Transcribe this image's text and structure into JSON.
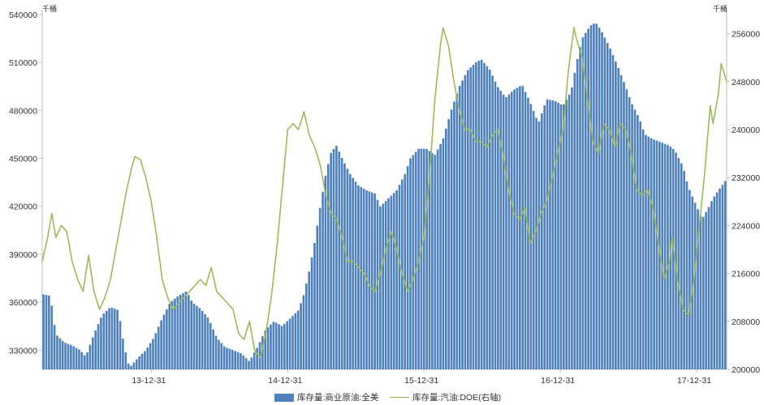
{
  "chart_data": {
    "type": "bar",
    "title": "",
    "units": {
      "left": "千桶",
      "right": "千桶"
    },
    "y_left": {
      "ticks": [
        "330000",
        "360000",
        "390000",
        "420000",
        "450000",
        "480000",
        "510000",
        "540000"
      ],
      "range": [
        318000,
        543000
      ]
    },
    "y_right": {
      "ticks": [
        "200000",
        "208000",
        "216000",
        "224000",
        "232000",
        "240000",
        "248000",
        "256000"
      ],
      "range": [
        200000,
        260000
      ]
    },
    "x_ticks": [
      "13-12-31",
      "14-12-31",
      "15-12-31",
      "16-12-31",
      "17-12-31"
    ],
    "x_tick_positions": [
      2014.0,
      2015.0,
      2016.0,
      2017.0,
      2018.0
    ],
    "x_range": [
      2013.2,
      2018.22
    ],
    "colors": {
      "bars": "#4F81BD",
      "line": "#9BBB59",
      "axis": "#BFBFBF"
    },
    "legend": [
      "库存量:商业原油:全美",
      "库存量:汽油:DOE(右轴)"
    ],
    "legend_position": "bottom",
    "series": [
      {
        "name": "库存量:商业原油:全美",
        "kind": "bar",
        "axis": "left",
        "points": [
          [
            2013.2,
            365000
          ],
          [
            2013.26,
            364000
          ],
          [
            2013.3,
            340000
          ],
          [
            2013.36,
            335000
          ],
          [
            2013.42,
            333000
          ],
          [
            2013.48,
            330000
          ],
          [
            2013.52,
            326000
          ],
          [
            2013.58,
            340000
          ],
          [
            2013.64,
            352000
          ],
          [
            2013.7,
            357000
          ],
          [
            2013.76,
            355000
          ],
          [
            2013.8,
            333000
          ],
          [
            2013.84,
            319000
          ],
          [
            2013.9,
            325000
          ],
          [
            2013.96,
            330000
          ],
          [
            2014.02,
            338000
          ],
          [
            2014.08,
            350000
          ],
          [
            2014.14,
            360000
          ],
          [
            2014.2,
            364000
          ],
          [
            2014.26,
            367000
          ],
          [
            2014.3,
            360000
          ],
          [
            2014.36,
            356000
          ],
          [
            2014.42,
            350000
          ],
          [
            2014.48,
            338000
          ],
          [
            2014.54,
            332000
          ],
          [
            2014.6,
            330000
          ],
          [
            2014.66,
            328000
          ],
          [
            2014.72,
            323000
          ],
          [
            2014.78,
            332000
          ],
          [
            2014.84,
            343000
          ],
          [
            2014.9,
            348000
          ],
          [
            2014.96,
            345000
          ],
          [
            2015.02,
            350000
          ],
          [
            2015.08,
            355000
          ],
          [
            2015.12,
            365000
          ],
          [
            2015.16,
            380000
          ],
          [
            2015.2,
            398000
          ],
          [
            2015.24,
            420000
          ],
          [
            2015.28,
            440000
          ],
          [
            2015.32,
            454000
          ],
          [
            2015.36,
            458000
          ],
          [
            2015.4,
            450000
          ],
          [
            2015.46,
            440000
          ],
          [
            2015.52,
            433000
          ],
          [
            2015.58,
            430000
          ],
          [
            2015.64,
            428000
          ],
          [
            2015.68,
            420000
          ],
          [
            2015.74,
            425000
          ],
          [
            2015.8,
            430000
          ],
          [
            2015.86,
            440000
          ],
          [
            2015.9,
            450000
          ],
          [
            2015.96,
            456000
          ],
          [
            2016.02,
            456000
          ],
          [
            2016.08,
            452000
          ],
          [
            2016.14,
            462000
          ],
          [
            2016.2,
            480000
          ],
          [
            2016.26,
            495000
          ],
          [
            2016.32,
            505000
          ],
          [
            2016.38,
            510000
          ],
          [
            2016.42,
            512000
          ],
          [
            2016.48,
            506000
          ],
          [
            2016.54,
            495000
          ],
          [
            2016.6,
            488000
          ],
          [
            2016.66,
            493000
          ],
          [
            2016.72,
            496000
          ],
          [
            2016.78,
            485000
          ],
          [
            2016.84,
            472000
          ],
          [
            2016.9,
            487000
          ],
          [
            2016.96,
            486000
          ],
          [
            2017.02,
            483000
          ],
          [
            2017.08,
            492000
          ],
          [
            2017.12,
            510000
          ],
          [
            2017.16,
            525000
          ],
          [
            2017.22,
            533000
          ],
          [
            2017.26,
            535000
          ],
          [
            2017.3,
            530000
          ],
          [
            2017.36,
            520000
          ],
          [
            2017.42,
            508000
          ],
          [
            2017.48,
            495000
          ],
          [
            2017.52,
            485000
          ],
          [
            2017.58,
            475000
          ],
          [
            2017.62,
            465000
          ],
          [
            2017.68,
            462000
          ],
          [
            2017.74,
            460000
          ],
          [
            2017.8,
            458000
          ],
          [
            2017.84,
            455000
          ],
          [
            2017.9,
            445000
          ],
          [
            2017.94,
            432000
          ],
          [
            2018.0,
            420000
          ],
          [
            2018.04,
            412000
          ],
          [
            2018.08,
            418000
          ],
          [
            2018.12,
            425000
          ],
          [
            2018.16,
            430000
          ],
          [
            2018.22,
            437000
          ]
        ]
      },
      {
        "name": "库存量:汽油:DOE(右轴)",
        "kind": "line",
        "axis": "right",
        "points": [
          [
            2013.2,
            218000
          ],
          [
            2013.24,
            222000
          ],
          [
            2013.27,
            226000
          ],
          [
            2013.3,
            222000
          ],
          [
            2013.34,
            224000
          ],
          [
            2013.38,
            223000
          ],
          [
            2013.42,
            218000
          ],
          [
            2013.46,
            215000
          ],
          [
            2013.5,
            213000
          ],
          [
            2013.54,
            219000
          ],
          [
            2013.58,
            213000
          ],
          [
            2013.62,
            210000
          ],
          [
            2013.66,
            212000
          ],
          [
            2013.7,
            215000
          ],
          [
            2013.74,
            220000
          ],
          [
            2013.78,
            225000
          ],
          [
            2013.82,
            230000
          ],
          [
            2013.86,
            234000
          ],
          [
            2013.88,
            235500
          ],
          [
            2013.92,
            235000
          ],
          [
            2013.96,
            232000
          ],
          [
            2014.0,
            228000
          ],
          [
            2014.04,
            222000
          ],
          [
            2014.08,
            215000
          ],
          [
            2014.12,
            212000
          ],
          [
            2014.16,
            210000
          ],
          [
            2014.2,
            211000
          ],
          [
            2014.24,
            212000
          ],
          [
            2014.28,
            213000
          ],
          [
            2014.32,
            214000
          ],
          [
            2014.36,
            215000
          ],
          [
            2014.4,
            214000
          ],
          [
            2014.44,
            217000
          ],
          [
            2014.48,
            213000
          ],
          [
            2014.52,
            212000
          ],
          [
            2014.56,
            211000
          ],
          [
            2014.6,
            210000
          ],
          [
            2014.64,
            206000
          ],
          [
            2014.68,
            205000
          ],
          [
            2014.72,
            208000
          ],
          [
            2014.76,
            203000
          ],
          [
            2014.8,
            202000
          ],
          [
            2014.84,
            206000
          ],
          [
            2014.88,
            212000
          ],
          [
            2014.92,
            220000
          ],
          [
            2014.96,
            230000
          ],
          [
            2015.0,
            240000
          ],
          [
            2015.04,
            241000
          ],
          [
            2015.08,
            240000
          ],
          [
            2015.12,
            243000
          ],
          [
            2015.16,
            239000
          ],
          [
            2015.2,
            237000
          ],
          [
            2015.24,
            234000
          ],
          [
            2015.28,
            229000
          ],
          [
            2015.32,
            226000
          ],
          [
            2015.36,
            225000
          ],
          [
            2015.4,
            222000
          ],
          [
            2015.44,
            218000
          ],
          [
            2015.48,
            218000
          ],
          [
            2015.52,
            217000
          ],
          [
            2015.56,
            216000
          ],
          [
            2015.6,
            214000
          ],
          [
            2015.64,
            213000
          ],
          [
            2015.68,
            216000
          ],
          [
            2015.72,
            220000
          ],
          [
            2015.76,
            223000
          ],
          [
            2015.8,
            220000
          ],
          [
            2015.84,
            216000
          ],
          [
            2015.88,
            213000
          ],
          [
            2015.92,
            215000
          ],
          [
            2015.96,
            218000
          ],
          [
            2016.0,
            222000
          ],
          [
            2016.04,
            232000
          ],
          [
            2016.08,
            245000
          ],
          [
            2016.12,
            254000
          ],
          [
            2016.14,
            257000
          ],
          [
            2016.18,
            254000
          ],
          [
            2016.22,
            248000
          ],
          [
            2016.26,
            243000
          ],
          [
            2016.3,
            240000
          ],
          [
            2016.34,
            240000
          ],
          [
            2016.38,
            238000
          ],
          [
            2016.42,
            238000
          ],
          [
            2016.46,
            237000
          ],
          [
            2016.5,
            239000
          ],
          [
            2016.54,
            240000
          ],
          [
            2016.58,
            236000
          ],
          [
            2016.62,
            230000
          ],
          [
            2016.66,
            226000
          ],
          [
            2016.7,
            225000
          ],
          [
            2016.74,
            227000
          ],
          [
            2016.78,
            221000
          ],
          [
            2016.82,
            223000
          ],
          [
            2016.86,
            226000
          ],
          [
            2016.9,
            228000
          ],
          [
            2016.94,
            232000
          ],
          [
            2016.98,
            236000
          ],
          [
            2017.02,
            240000
          ],
          [
            2017.06,
            250000
          ],
          [
            2017.1,
            257000
          ],
          [
            2017.12,
            255000
          ],
          [
            2017.16,
            252000
          ],
          [
            2017.2,
            245000
          ],
          [
            2017.24,
            238000
          ],
          [
            2017.28,
            236000
          ],
          [
            2017.32,
            241000
          ],
          [
            2017.36,
            240000
          ],
          [
            2017.4,
            237000
          ],
          [
            2017.44,
            241000
          ],
          [
            2017.48,
            240000
          ],
          [
            2017.52,
            236000
          ],
          [
            2017.56,
            230000
          ],
          [
            2017.6,
            229000
          ],
          [
            2017.64,
            230000
          ],
          [
            2017.68,
            227000
          ],
          [
            2017.72,
            221000
          ],
          [
            2017.76,
            215000
          ],
          [
            2017.8,
            218000
          ],
          [
            2017.82,
            222000
          ],
          [
            2017.86,
            215000
          ],
          [
            2017.9,
            210000
          ],
          [
            2017.94,
            209000
          ],
          [
            2017.98,
            215000
          ],
          [
            2018.02,
            224000
          ],
          [
            2018.06,
            233000
          ],
          [
            2018.1,
            244000
          ],
          [
            2018.12,
            241000
          ],
          [
            2018.16,
            246000
          ],
          [
            2018.18,
            251000
          ],
          [
            2018.22,
            248000
          ]
        ]
      }
    ]
  }
}
